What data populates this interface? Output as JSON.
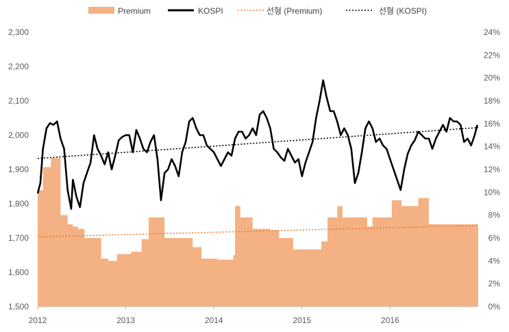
{
  "chart_data": {
    "type": "line",
    "title": "",
    "colors": {
      "premium_fill": "#F4B183",
      "kospi_line": "#000000",
      "premium_trend": "#ED7D31",
      "kospi_trend": "#000000"
    },
    "legend": {
      "position": "top",
      "entries": [
        {
          "label": "Premium",
          "style": "area",
          "color": "#F4B183"
        },
        {
          "label": "KOSPI",
          "style": "line",
          "color": "#000000"
        },
        {
          "label": "선형 (Premium)",
          "style": "dotted",
          "color": "#ED7D31"
        },
        {
          "label": "선형 (KOSPI)",
          "style": "dotted",
          "color": "#000000"
        }
      ]
    },
    "x_axis": {
      "range": [
        2012.0,
        2017.0
      ],
      "ticks": [
        {
          "value": 2012,
          "label": "2012"
        },
        {
          "value": 2013,
          "label": "2013"
        },
        {
          "value": 2014,
          "label": "2014"
        },
        {
          "value": 2015,
          "label": "2015"
        },
        {
          "value": 2016,
          "label": "2016"
        }
      ]
    },
    "y_left": {
      "range": [
        1500,
        2300
      ],
      "ticks": [
        "1,500",
        "1,600",
        "1,700",
        "1,800",
        "1,900",
        "2,000",
        "2,100",
        "2,200",
        "2,300"
      ]
    },
    "y_right": {
      "range": [
        0,
        24
      ],
      "ticks": [
        "0%",
        "2%",
        "4%",
        "6%",
        "8%",
        "10%",
        "12%",
        "14%",
        "16%",
        "18%",
        "20%",
        "22%",
        "24%"
      ]
    },
    "series": [
      {
        "name": "KOSPI",
        "axis": "left",
        "type": "line",
        "x": [
          2012.0,
          2012.03,
          2012.06,
          2012.1,
          2012.14,
          2012.18,
          2012.22,
          2012.26,
          2012.3,
          2012.34,
          2012.38,
          2012.4,
          2012.44,
          2012.48,
          2012.52,
          2012.56,
          2012.6,
          2012.64,
          2012.68,
          2012.72,
          2012.76,
          2012.8,
          2012.84,
          2012.88,
          2012.92,
          2012.96,
          2013.0,
          2013.04,
          2013.08,
          2013.12,
          2013.16,
          2013.2,
          2013.24,
          2013.28,
          2013.32,
          2013.36,
          2013.4,
          2013.44,
          2013.48,
          2013.52,
          2013.56,
          2013.6,
          2013.64,
          2013.68,
          2013.72,
          2013.76,
          2013.8,
          2013.84,
          2013.88,
          2013.92,
          2013.96,
          2014.0,
          2014.04,
          2014.08,
          2014.12,
          2014.16,
          2014.2,
          2014.24,
          2014.28,
          2014.32,
          2014.36,
          2014.4,
          2014.44,
          2014.48,
          2014.52,
          2014.56,
          2014.6,
          2014.64,
          2014.68,
          2014.72,
          2014.76,
          2014.8,
          2014.84,
          2014.88,
          2014.92,
          2014.96,
          2015.0,
          2015.04,
          2015.08,
          2015.12,
          2015.16,
          2015.2,
          2015.24,
          2015.28,
          2015.32,
          2015.36,
          2015.4,
          2015.44,
          2015.48,
          2015.52,
          2015.56,
          2015.6,
          2015.64,
          2015.68,
          2015.72,
          2015.76,
          2015.8,
          2015.84,
          2015.88,
          2015.92,
          2015.96,
          2016.0,
          2016.04,
          2016.08,
          2016.12,
          2016.16,
          2016.2,
          2016.24,
          2016.28,
          2016.32,
          2016.36,
          2016.4,
          2016.44,
          2016.48,
          2016.52,
          2016.56,
          2016.6,
          2016.64,
          2016.68,
          2016.72,
          2016.76,
          2016.8,
          2016.84,
          2016.88,
          2016.92,
          2016.96,
          2016.99
        ],
        "values": [
          1830,
          1860,
          1960,
          2020,
          2035,
          2030,
          2040,
          1990,
          1960,
          1840,
          1785,
          1870,
          1820,
          1790,
          1860,
          1890,
          1920,
          2000,
          1960,
          1940,
          1915,
          1950,
          1900,
          1940,
          1985,
          1995,
          2000,
          2000,
          1950,
          2015,
          1990,
          1960,
          1950,
          1980,
          2000,
          1930,
          1810,
          1890,
          1900,
          1930,
          1910,
          1880,
          1950,
          1980,
          2040,
          2050,
          2020,
          2000,
          2000,
          1970,
          1960,
          1950,
          1930,
          1910,
          1930,
          1950,
          1940,
          1990,
          2010,
          2010,
          1990,
          2000,
          2020,
          2000,
          2060,
          2070,
          2050,
          2020,
          1960,
          1950,
          1935,
          1925,
          1960,
          1940,
          1920,
          1930,
          1880,
          1920,
          1950,
          1980,
          2050,
          2100,
          2160,
          2110,
          2070,
          2070,
          2040,
          2000,
          2020,
          2000,
          1960,
          1860,
          1890,
          1950,
          2020,
          2040,
          2020,
          1980,
          1990,
          1970,
          1960,
          1930,
          1900,
          1870,
          1840,
          1900,
          1945,
          1970,
          1985,
          2010,
          2000,
          1990,
          1990,
          1960,
          1990,
          2010,
          2030,
          2010,
          2050,
          2040,
          2040,
          2030,
          1980,
          1990,
          1970,
          2000,
          2030
        ]
      },
      {
        "name": "Premium",
        "axis": "right",
        "type": "area-step",
        "x": [
          2012.0,
          2012.06,
          2012.15,
          2012.26,
          2012.34,
          2012.4,
          2012.46,
          2012.53,
          2012.72,
          2012.8,
          2012.9,
          2013.06,
          2013.18,
          2013.26,
          2013.44,
          2013.62,
          2013.76,
          2013.86,
          2014.04,
          2014.22,
          2014.24,
          2014.3,
          2014.44,
          2014.64,
          2014.74,
          2014.9,
          2015.14,
          2015.22,
          2015.29,
          2015.4,
          2015.46,
          2015.54,
          2015.74,
          2015.8,
          2015.94,
          2016.02,
          2016.13,
          2016.22,
          2016.32,
          2016.44,
          2016.56,
          2016.7,
          2016.83,
          2016.99
        ],
        "values": [
          10.2,
          12.2,
          13.0,
          8.0,
          7.2,
          7.0,
          6.8,
          6.0,
          4.2,
          4.0,
          4.6,
          4.8,
          5.9,
          7.8,
          6.0,
          6.0,
          5.2,
          4.2,
          4.1,
          4.5,
          8.8,
          7.8,
          6.8,
          6.7,
          6.0,
          5.0,
          5.0,
          5.7,
          7.8,
          8.8,
          7.8,
          7.8,
          7.0,
          7.8,
          7.8,
          9.3,
          8.8,
          8.8,
          9.5,
          7.2,
          7.2,
          7.2,
          7.2,
          7.2
        ]
      },
      {
        "name": "선형 (Premium)",
        "axis": "right",
        "type": "trendline",
        "x": [
          2012.0,
          2017.0
        ],
        "values": [
          6.1,
          7.1
        ]
      },
      {
        "name": "선형 (KOSPI)",
        "axis": "left",
        "type": "trendline",
        "x": [
          2012.0,
          2017.0
        ],
        "values": [
          1932,
          2022
        ]
      }
    ]
  }
}
